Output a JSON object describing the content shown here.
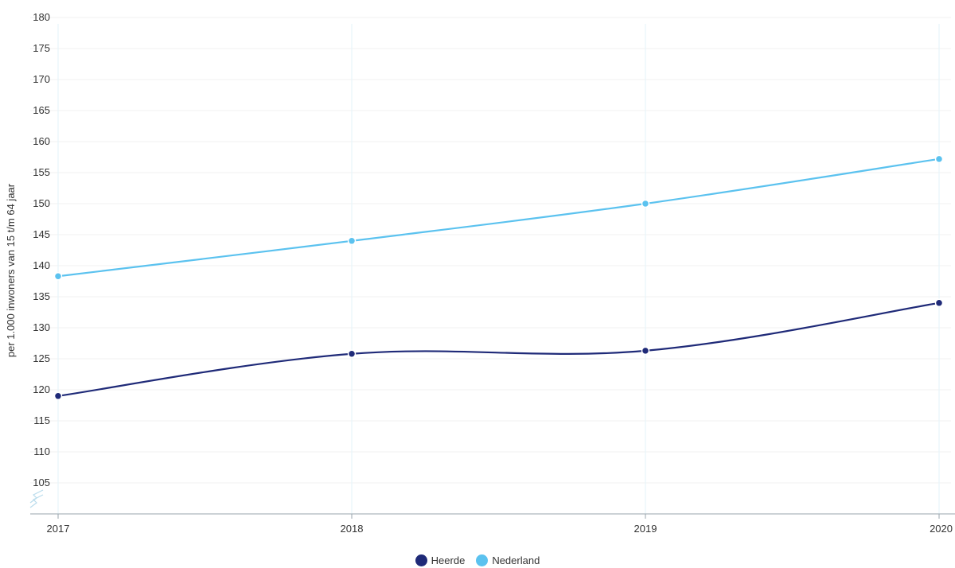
{
  "chart_data": {
    "type": "line",
    "x": [
      "2017",
      "2018",
      "2019",
      "2020"
    ],
    "series": [
      {
        "name": "Heerde",
        "values": [
          119.0,
          125.8,
          126.3,
          134.0
        ],
        "color": "#1f2a78"
      },
      {
        "name": "Nederland",
        "values": [
          138.3,
          144.0,
          150.0,
          157.2
        ],
        "color": "#5bc2ef"
      }
    ],
    "ylabel": "per 1.000 inwoners van 15 t/m 64 jaar",
    "ylim": [
      100,
      180
    ],
    "yticks": [
      105,
      110,
      115,
      120,
      125,
      130,
      135,
      140,
      145,
      150,
      155,
      160,
      165,
      170,
      175,
      180
    ],
    "axis_break": true,
    "grid": true,
    "legend_position": "bottom"
  }
}
